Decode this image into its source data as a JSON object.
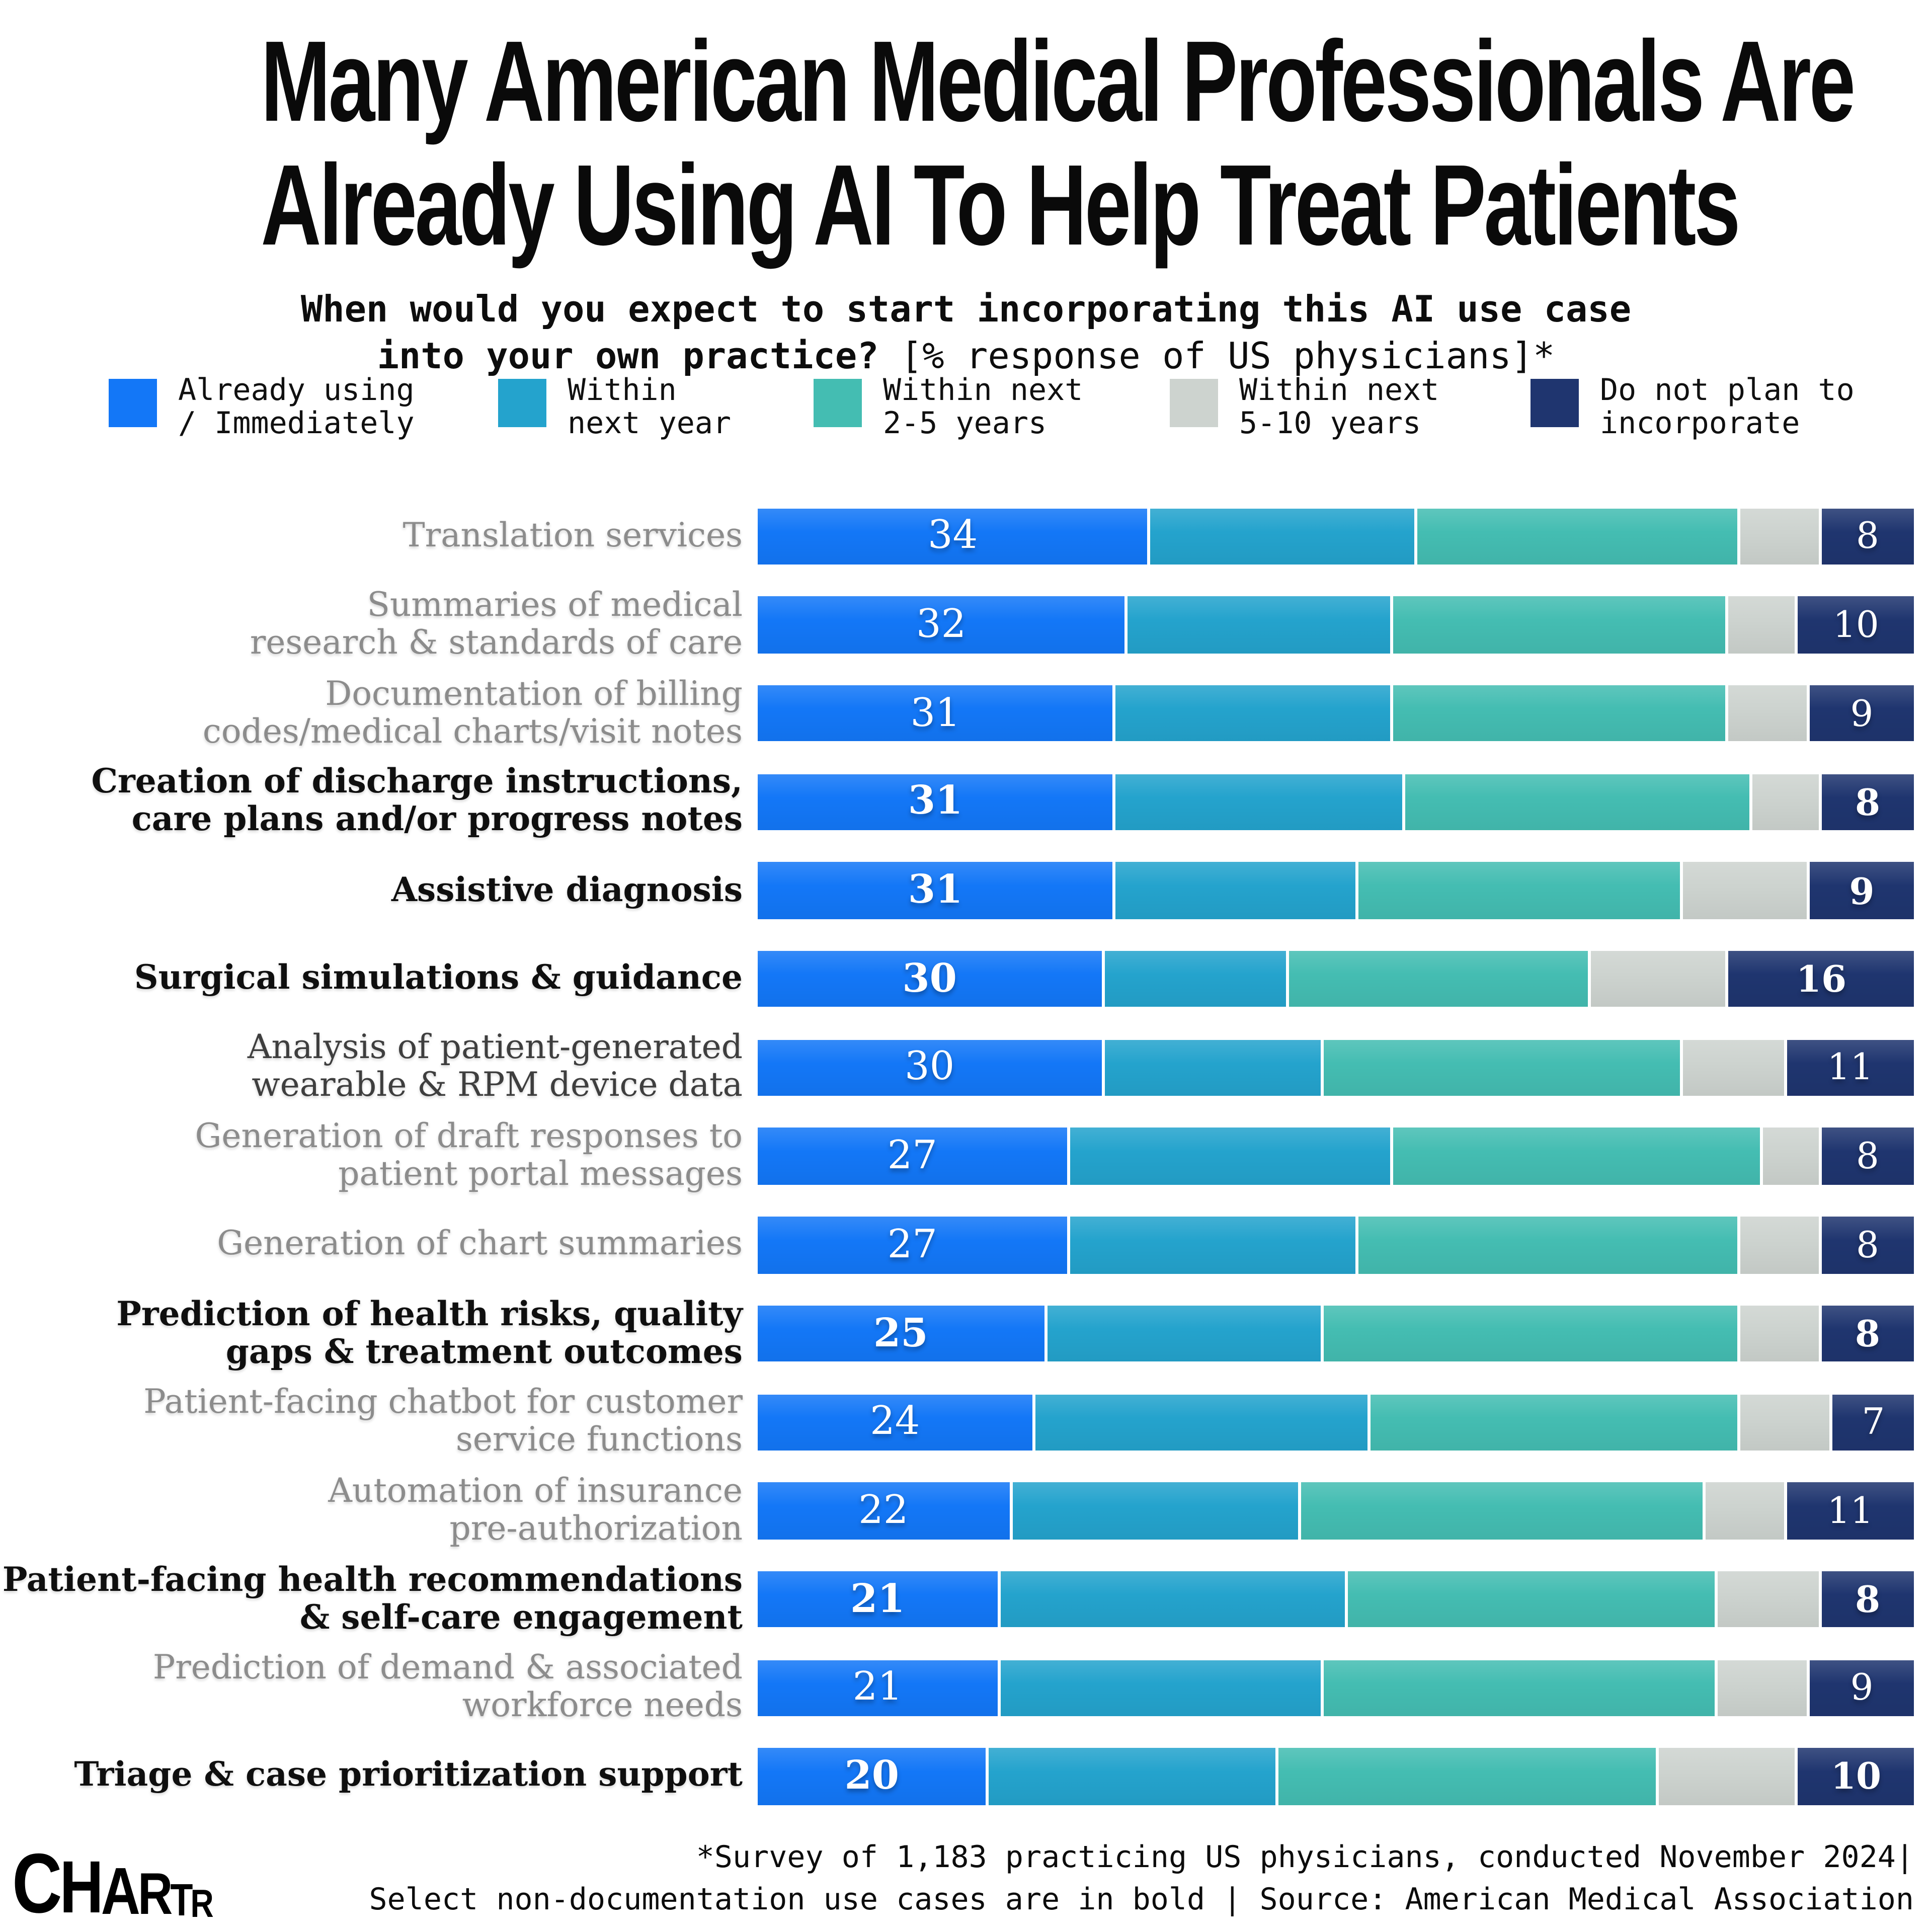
{
  "title": {
    "line1": "Many American Medical Professionals Are",
    "line2": "Already Using AI To Help Treat Patients"
  },
  "subtitle": {
    "line1": "When would you expect to start incorporating this AI use case",
    "line2_bold": "into your own practice?",
    "line2_note": " [% response of US physicians]*"
  },
  "legend": {
    "items": [
      {
        "line1": "Already using",
        "line2": "/ Immediately",
        "color": "#1377f7"
      },
      {
        "line1": "Within",
        "line2": "next year",
        "color": "#24a3cd"
      },
      {
        "line1": "Within next",
        "line2": "2-5 years",
        "color": "#44bdb2"
      },
      {
        "line1": "Within next",
        "line2": "5-10 years",
        "color": "#cdd3cf"
      },
      {
        "line1": "Do not plan to",
        "line2": "incorporate",
        "color": "#1f356f"
      }
    ],
    "x_positions": [
      72,
      330,
      539,
      775,
      1014
    ]
  },
  "chart_data": {
    "type": "bar",
    "orientation": "horizontal",
    "stacked": true,
    "unit": "% of US physicians",
    "total_per_row": 100,
    "legend_position": "top",
    "value_labels": "first and last segment of each row only",
    "segments": [
      {
        "name": "Already using / Immediately",
        "color": "#1377f7"
      },
      {
        "name": "Within next year",
        "color": "#24a3cd"
      },
      {
        "name": "Within next 2-5 years",
        "color": "#44bdb2"
      },
      {
        "name": "Within next 5-10 years",
        "color": "#cdd3cf"
      },
      {
        "name": "Do not plan to incorporate",
        "color": "#1f356f"
      }
    ],
    "rows": [
      {
        "label": "Translation services",
        "label_lines": [
          "Translation services"
        ],
        "emphasis": "gray",
        "values": [
          34,
          23,
          28,
          7,
          8
        ]
      },
      {
        "label": "Summaries of medical research & standards of care",
        "label_lines": [
          "Summaries of medical",
          "research & standards of care"
        ],
        "emphasis": "gray",
        "values": [
          32,
          23,
          29,
          6,
          10
        ]
      },
      {
        "label": "Documentation of billing codes/medical charts/visit notes",
        "label_lines": [
          "Documentation of billing",
          "codes/medical charts/visit notes"
        ],
        "emphasis": "gray",
        "values": [
          31,
          24,
          29,
          7,
          9
        ]
      },
      {
        "label": "Creation of discharge instructions, care plans and/or progress notes",
        "label_lines": [
          "Creation of discharge instructions,",
          "care plans and/or progress notes"
        ],
        "emphasis": "bold",
        "values": [
          31,
          25,
          30,
          6,
          8
        ]
      },
      {
        "label": "Assistive diagnosis",
        "label_lines": [
          "Assistive diagnosis"
        ],
        "emphasis": "bold",
        "values": [
          31,
          21,
          28,
          11,
          9
        ]
      },
      {
        "label": "Surgical simulations & guidance",
        "label_lines": [
          "Surgical simulations & guidance"
        ],
        "emphasis": "bold",
        "values": [
          30,
          16,
          26,
          12,
          16
        ]
      },
      {
        "label": "Analysis of patient-generated wearable & RPM device data",
        "label_lines": [
          "Analysis of patient-generated",
          "wearable & RPM device data"
        ],
        "emphasis": "dark",
        "values": [
          30,
          19,
          31,
          9,
          11
        ]
      },
      {
        "label": "Generation of draft responses to patient portal messages",
        "label_lines": [
          "Generation of draft responses to",
          "patient portal messages"
        ],
        "emphasis": "gray",
        "values": [
          27,
          28,
          32,
          5,
          8
        ]
      },
      {
        "label": "Generation of chart summaries",
        "label_lines": [
          "Generation of chart summaries"
        ],
        "emphasis": "gray",
        "values": [
          27,
          25,
          33,
          7,
          8
        ]
      },
      {
        "label": "Prediction of health risks, quality gaps & treatment outcomes",
        "label_lines": [
          "Prediction of health risks, quality",
          "gaps & treatment outcomes"
        ],
        "emphasis": "bold",
        "values": [
          25,
          24,
          36,
          7,
          8
        ]
      },
      {
        "label": "Patient-facing chatbot for customer service functions",
        "label_lines": [
          "Patient-facing chatbot for customer",
          "service functions"
        ],
        "emphasis": "gray",
        "values": [
          24,
          29,
          32,
          8,
          7
        ]
      },
      {
        "label": "Automation of insurance pre-authorization",
        "label_lines": [
          "Automation of insurance",
          "pre-authorization"
        ],
        "emphasis": "gray",
        "values": [
          22,
          25,
          35,
          7,
          11
        ]
      },
      {
        "label": "Patient-facing health recommendations & self-care engagement",
        "label_lines": [
          "Patient-facing health recommendations",
          "& self-care engagement"
        ],
        "emphasis": "bold",
        "values": [
          21,
          30,
          32,
          9,
          8
        ]
      },
      {
        "label": "Prediction of demand & associated workforce needs",
        "label_lines": [
          "Prediction of demand & associated",
          "workforce needs"
        ],
        "emphasis": "gray",
        "values": [
          21,
          28,
          34,
          8,
          9
        ]
      },
      {
        "label": "Triage & case prioritization support",
        "label_lines": [
          "Triage & case prioritization support"
        ],
        "emphasis": "bold",
        "values": [
          20,
          25,
          33,
          12,
          10
        ]
      }
    ]
  },
  "footer": {
    "line1": "*Survey of 1,183 practicing US physicians, conducted November 2024|",
    "line2": "Select non-documentation use cases are in bold | Source: American Medical Association"
  },
  "logo": {
    "letters": [
      "C",
      "H",
      "A",
      "R",
      "T",
      "R"
    ],
    "alt": "CHARTR"
  }
}
